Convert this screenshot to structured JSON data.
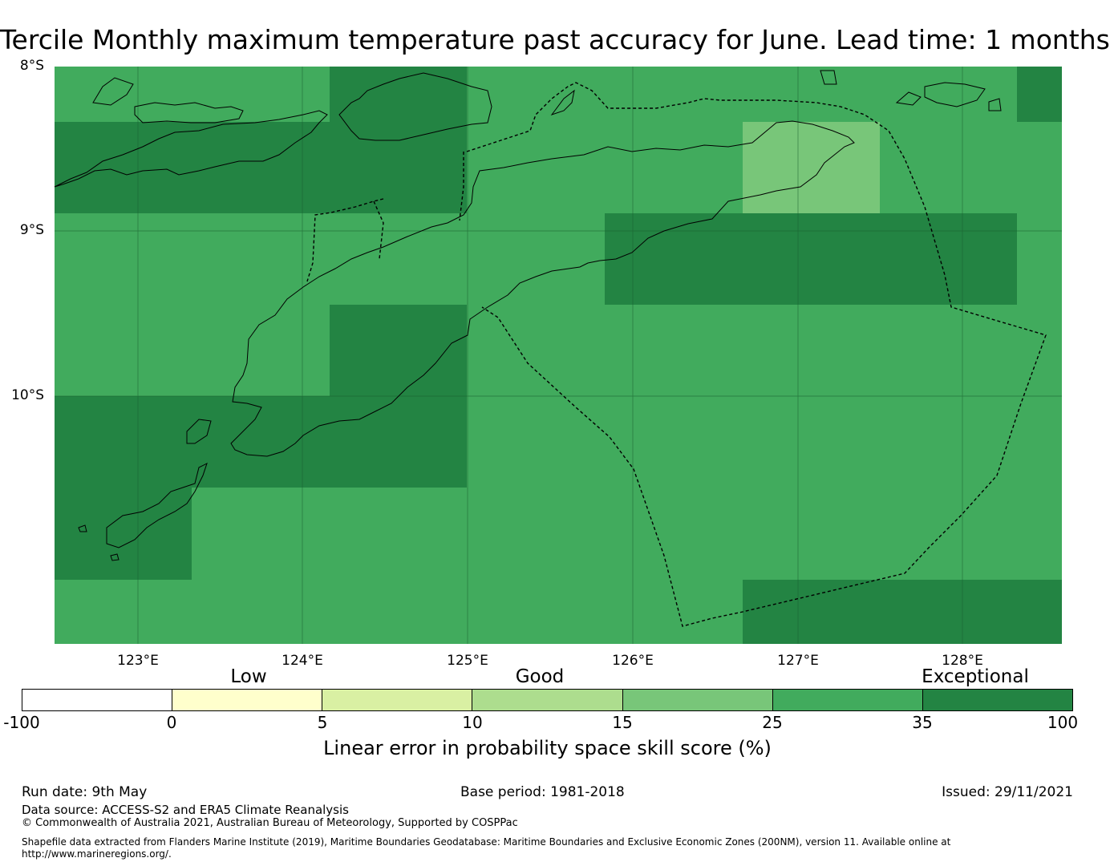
{
  "title": "Tercile Monthly maximum temperature past accuracy for June. Lead time: 1 months",
  "map": {
    "lat_labels": [
      "8°S",
      "9°S",
      "10°S"
    ],
    "lon_labels": [
      "123°E",
      "124°E",
      "125°E",
      "126°E",
      "127°E",
      "128°E"
    ],
    "colors": {
      "good": "#41ab5d",
      "exceptional": "#238443",
      "moderate": "#78c679"
    }
  },
  "colorbar": {
    "categories": [
      "Low",
      "Good",
      "Exceptional"
    ],
    "ticks": [
      "-100",
      "0",
      "5",
      "10",
      "15",
      "25",
      "35",
      "100"
    ],
    "colors": [
      "#ffffff",
      "#ffffcc",
      "#d9f0a3",
      "#addd8e",
      "#78c679",
      "#41ab5d",
      "#238443"
    ],
    "label": "Linear error in probability space skill score (%)"
  },
  "footer": {
    "run_date": "Run date: 9th May",
    "base_period": "Base period: 1981-2018",
    "issued": "Issued: 29/11/2021",
    "data_source": "Data source: ACCESS-S2 and ERA5 Climate Reanalysis",
    "copyright": "© Commonwealth of Australia 2021, Australian Bureau of Meteorology, Supported by COSPPac",
    "shapefile": "Shapefile data extracted from Flanders Marine Institute (2019), Maritime Boundaries Geodatabase: Maritime Boundaries and Exclusive Economic Zones (200NM), version 11. Available online at http://www.marineregions.org/."
  }
}
